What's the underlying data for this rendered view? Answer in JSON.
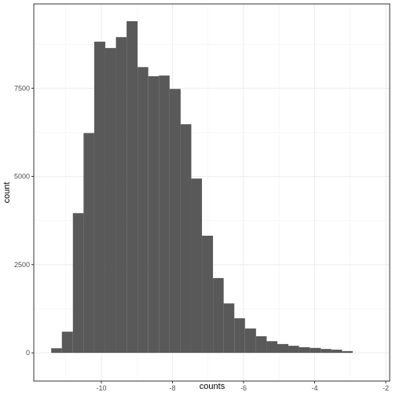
{
  "chart_data": {
    "type": "histogram",
    "x_label": "counts",
    "y_label": "count",
    "bins": [
      -11.41,
      -11.11,
      -10.8,
      -10.5,
      -10.2,
      -9.89,
      -9.59,
      -9.29,
      -8.98,
      -8.68,
      -8.38,
      -8.08,
      -7.77,
      -7.47,
      -7.17,
      -6.86,
      -6.56,
      -6.26,
      -5.96,
      -5.65,
      -5.35,
      -5.05,
      -4.74,
      -4.44,
      -4.14,
      -3.83,
      -3.53,
      -3.23,
      -2.93
    ],
    "values": [
      130,
      600,
      3960,
      6230,
      8820,
      8640,
      8950,
      9400,
      8100,
      7840,
      7860,
      7480,
      6480,
      4940,
      3320,
      2120,
      1400,
      980,
      690,
      470,
      330,
      250,
      200,
      160,
      140,
      110,
      90,
      50
    ],
    "color": "#595959",
    "xlim": [
      -11.9,
      -1.89
    ],
    "xticks": [
      -10,
      -8,
      -6,
      -4,
      -2
    ],
    "xminorticks": [
      -11,
      -9,
      -7,
      -5,
      -3
    ],
    "ylim": [
      -800,
      9890
    ],
    "yticks": [
      0,
      2500,
      5000,
      7500
    ],
    "yminorticks": [
      1250,
      3750,
      6250,
      8750
    ],
    "grid": true
  }
}
